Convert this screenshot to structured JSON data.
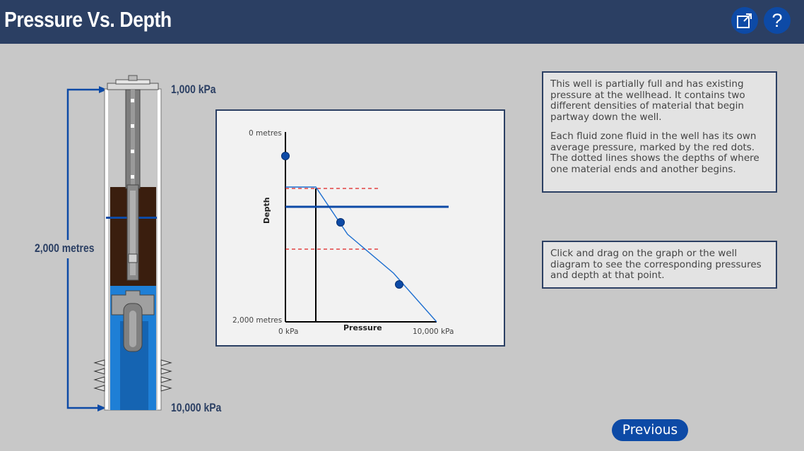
{
  "header": {
    "title": "Pressure Vs. Depth",
    "popout_icon": "popout-window-icon",
    "help_label": "?"
  },
  "well": {
    "top_pressure": "1,000 kPa",
    "depth_label": "2,000 metres",
    "bottom_pressure": "10,000 kPa"
  },
  "graph": {
    "y_top_label": "0 metres",
    "y_bottom_label": "2,000 metres",
    "x_left_label": "0 kPa",
    "x_right_label": "10,000 kPa",
    "x_axis_title": "Pressure",
    "y_axis_title": "Depth"
  },
  "info_box_1": {
    "para1": "This well is partially full and has existing pressure at the wellhead. It contains two different densities of material that begin partway down the well.",
    "para2": "Each fluid zone fluid in the well has its own average pressure, marked by the red dots. The dotted lines shows the depths of where one material ends and another begins."
  },
  "info_box_2": {
    "text": "Click and drag on the graph or the well diagram to see the corresponding pressures and depth at that point."
  },
  "nav": {
    "previous_label": "Previous"
  },
  "colors": {
    "header_bg": "#2b3f63",
    "accent_blue": "#0d4aa6",
    "fluid_blue": "#1e7fd6",
    "mud_brown": "#3a1e0e",
    "dashed_red": "#e02020"
  }
}
